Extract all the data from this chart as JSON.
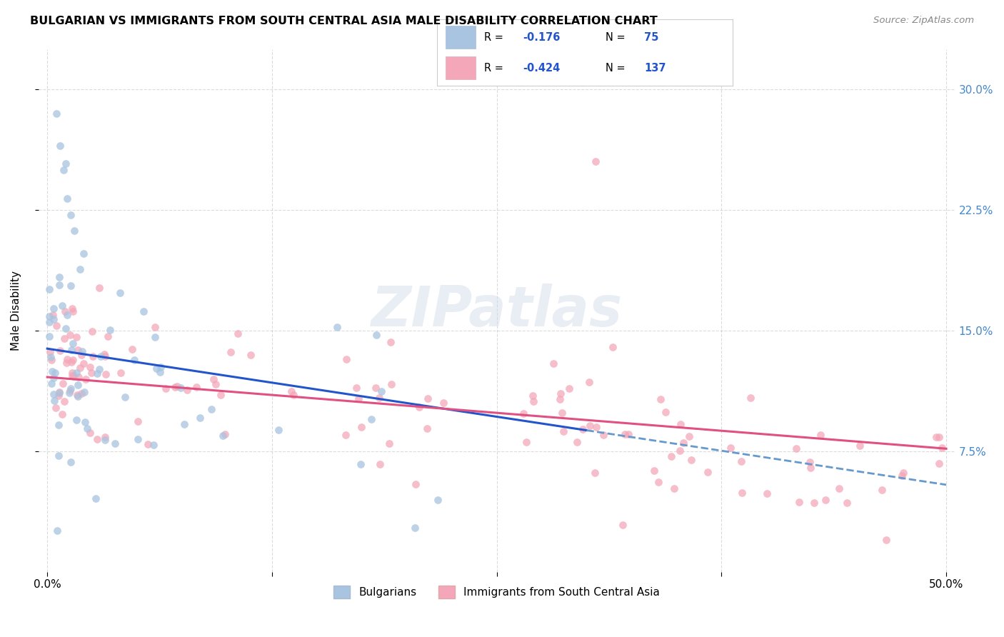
{
  "title": "BULGARIAN VS IMMIGRANTS FROM SOUTH CENTRAL ASIA MALE DISABILITY CORRELATION CHART",
  "source": "Source: ZipAtlas.com",
  "ylabel": "Male Disability",
  "color_blue": "#a8c4e0",
  "color_pink": "#f4a7b9",
  "line_color_blue": "#2255cc",
  "line_color_pink": "#e05080",
  "line_color_blue_dashed": "#6699cc",
  "watermark": "ZIPatlas",
  "bg_color": "#ffffff",
  "r_bulg": -0.176,
  "n_bulg": 75,
  "r_imm": -0.424,
  "n_imm": 137
}
